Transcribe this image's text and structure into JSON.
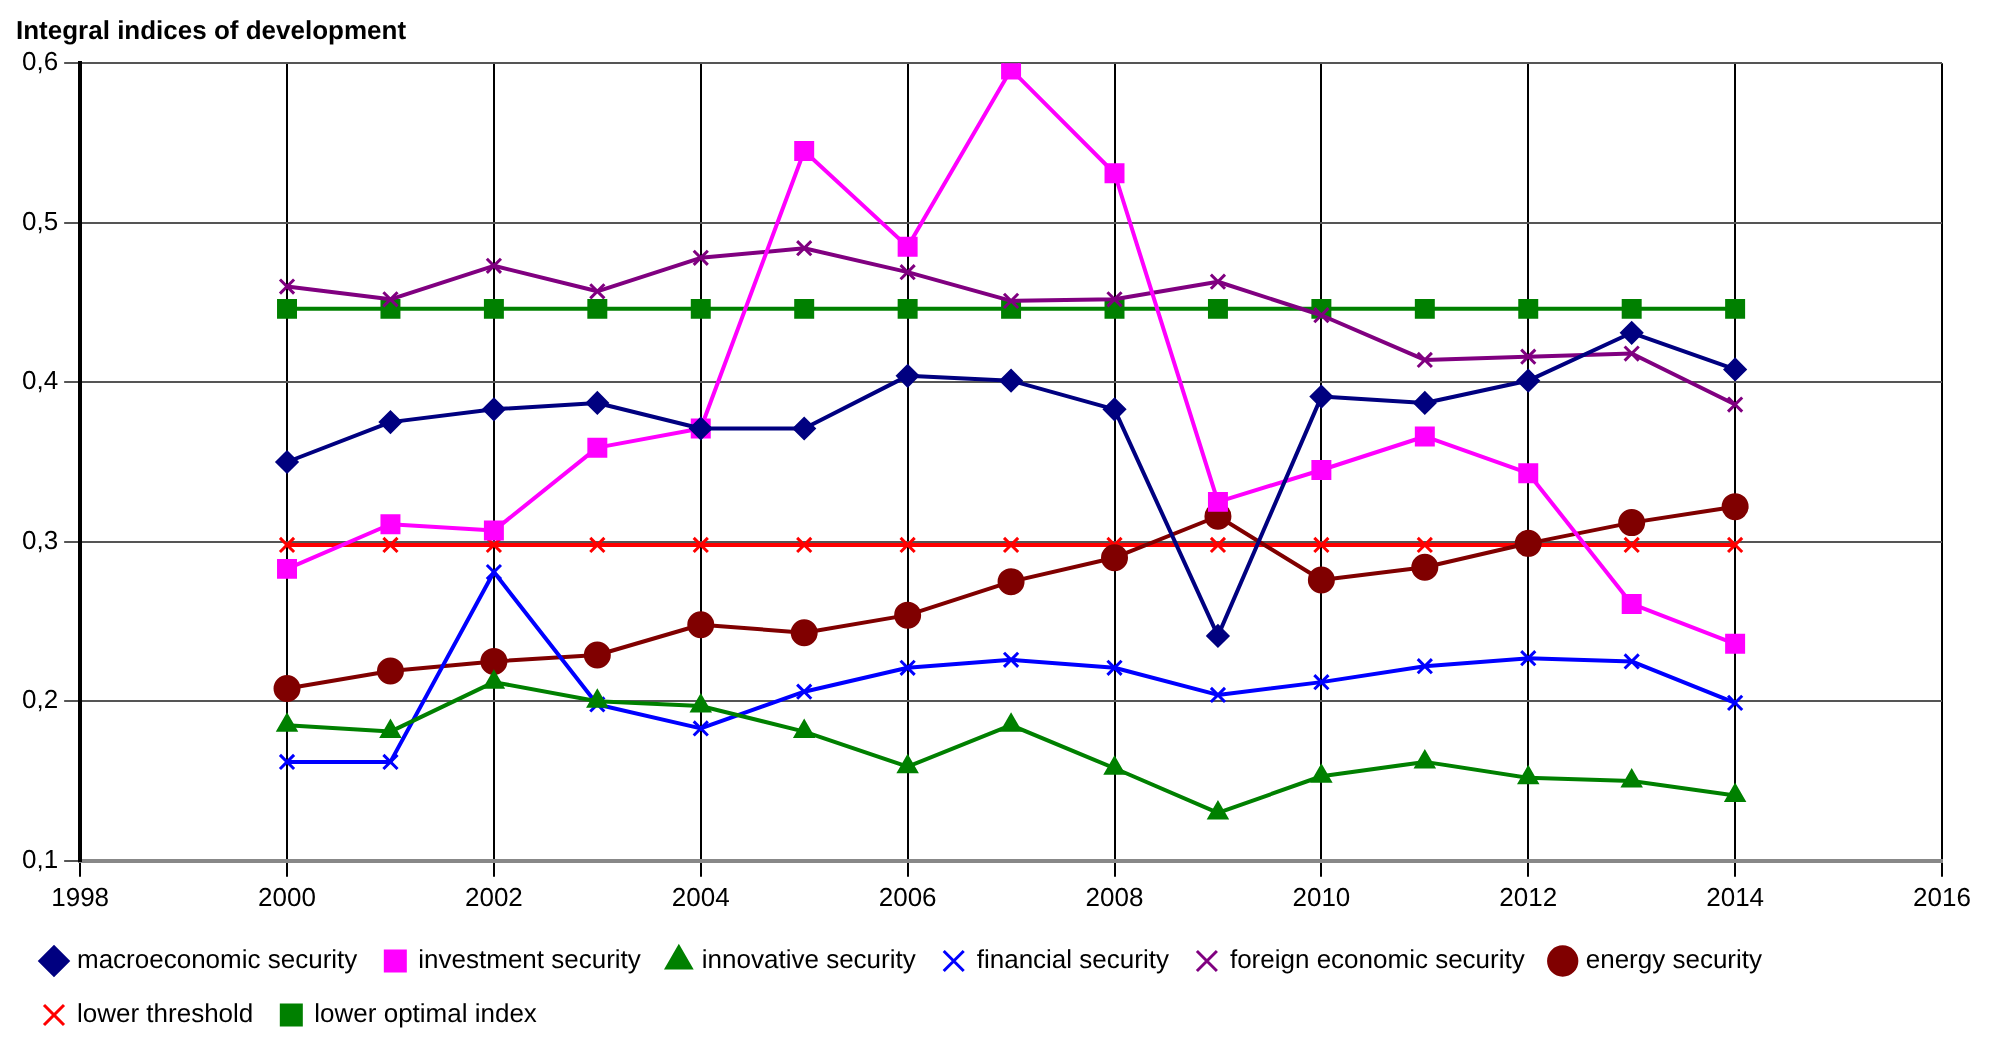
{
  "chart_data": {
    "type": "line",
    "title": "Integral indices of development",
    "x": [
      2000,
      2001,
      2002,
      2003,
      2004,
      2005,
      2006,
      2007,
      2008,
      2009,
      2010,
      2011,
      2012,
      2013,
      2014
    ],
    "series": [
      {
        "name": "macroeconomic security",
        "color": "#000080",
        "marker": "diamond",
        "values": [
          0.35,
          0.375,
          0.383,
          0.387,
          0.371,
          0.371,
          0.404,
          0.401,
          0.383,
          0.241,
          0.391,
          0.387,
          0.401,
          0.431,
          0.408
        ]
      },
      {
        "name": "investment security",
        "color": "#ff00ff",
        "marker": "square",
        "values": [
          0.283,
          0.311,
          0.307,
          0.359,
          0.371,
          0.545,
          0.485,
          0.596,
          0.531,
          0.325,
          0.345,
          0.366,
          0.343,
          0.261,
          0.236
        ]
      },
      {
        "name": "innovative security",
        "color": "#008000",
        "marker": "triangle",
        "values": [
          0.185,
          0.181,
          0.212,
          0.2,
          0.197,
          0.181,
          0.159,
          0.185,
          0.158,
          0.13,
          0.153,
          0.162,
          0.152,
          0.15,
          0.141
        ]
      },
      {
        "name": "financial security",
        "color": "#0000ff",
        "marker": "cross",
        "values": [
          0.162,
          0.162,
          0.281,
          0.198,
          0.183,
          0.206,
          0.221,
          0.226,
          0.221,
          0.204,
          0.212,
          0.222,
          0.227,
          0.225,
          0.199
        ]
      },
      {
        "name": "foreign economic security",
        "color": "#800080",
        "marker": "cross",
        "values": [
          0.46,
          0.452,
          0.473,
          0.457,
          0.478,
          0.484,
          0.469,
          0.451,
          0.452,
          0.463,
          0.442,
          0.414,
          0.416,
          0.418,
          0.386
        ]
      },
      {
        "name": "energy security",
        "color": "#800000",
        "marker": "circle",
        "values": [
          0.208,
          0.219,
          0.225,
          0.229,
          0.248,
          0.243,
          0.254,
          0.275,
          0.29,
          0.316,
          0.276,
          0.284,
          0.299,
          0.312,
          0.322
        ]
      },
      {
        "name": "lower threshold",
        "color": "#ff0000",
        "marker": "cross",
        "values": [
          0.298,
          0.298,
          0.298,
          0.298,
          0.298,
          0.298,
          0.298,
          0.298,
          0.298,
          0.298,
          0.298,
          0.298,
          0.298,
          0.298,
          0.298
        ]
      },
      {
        "name": "lower optimal index",
        "color": "#008000",
        "marker": "square",
        "values": [
          0.446,
          0.446,
          0.446,
          0.446,
          0.446,
          0.446,
          0.446,
          0.446,
          0.446,
          0.446,
          0.446,
          0.446,
          0.446,
          0.446,
          0.446
        ]
      }
    ],
    "xlim": [
      1998,
      2016
    ],
    "xticks": [
      1998,
      2000,
      2002,
      2004,
      2006,
      2008,
      2010,
      2012,
      2014,
      2016
    ],
    "ylim": [
      0.1,
      0.6
    ],
    "yticks": [
      {
        "value": 0.1,
        "label": "0,1"
      },
      {
        "value": 0.2,
        "label": "0,2"
      },
      {
        "value": 0.3,
        "label": "0,3"
      },
      {
        "value": 0.4,
        "label": "0,4"
      },
      {
        "value": 0.5,
        "label": "0,5"
      },
      {
        "value": 0.6,
        "label": "0,6"
      }
    ],
    "grid": true,
    "legend": "bottom"
  }
}
